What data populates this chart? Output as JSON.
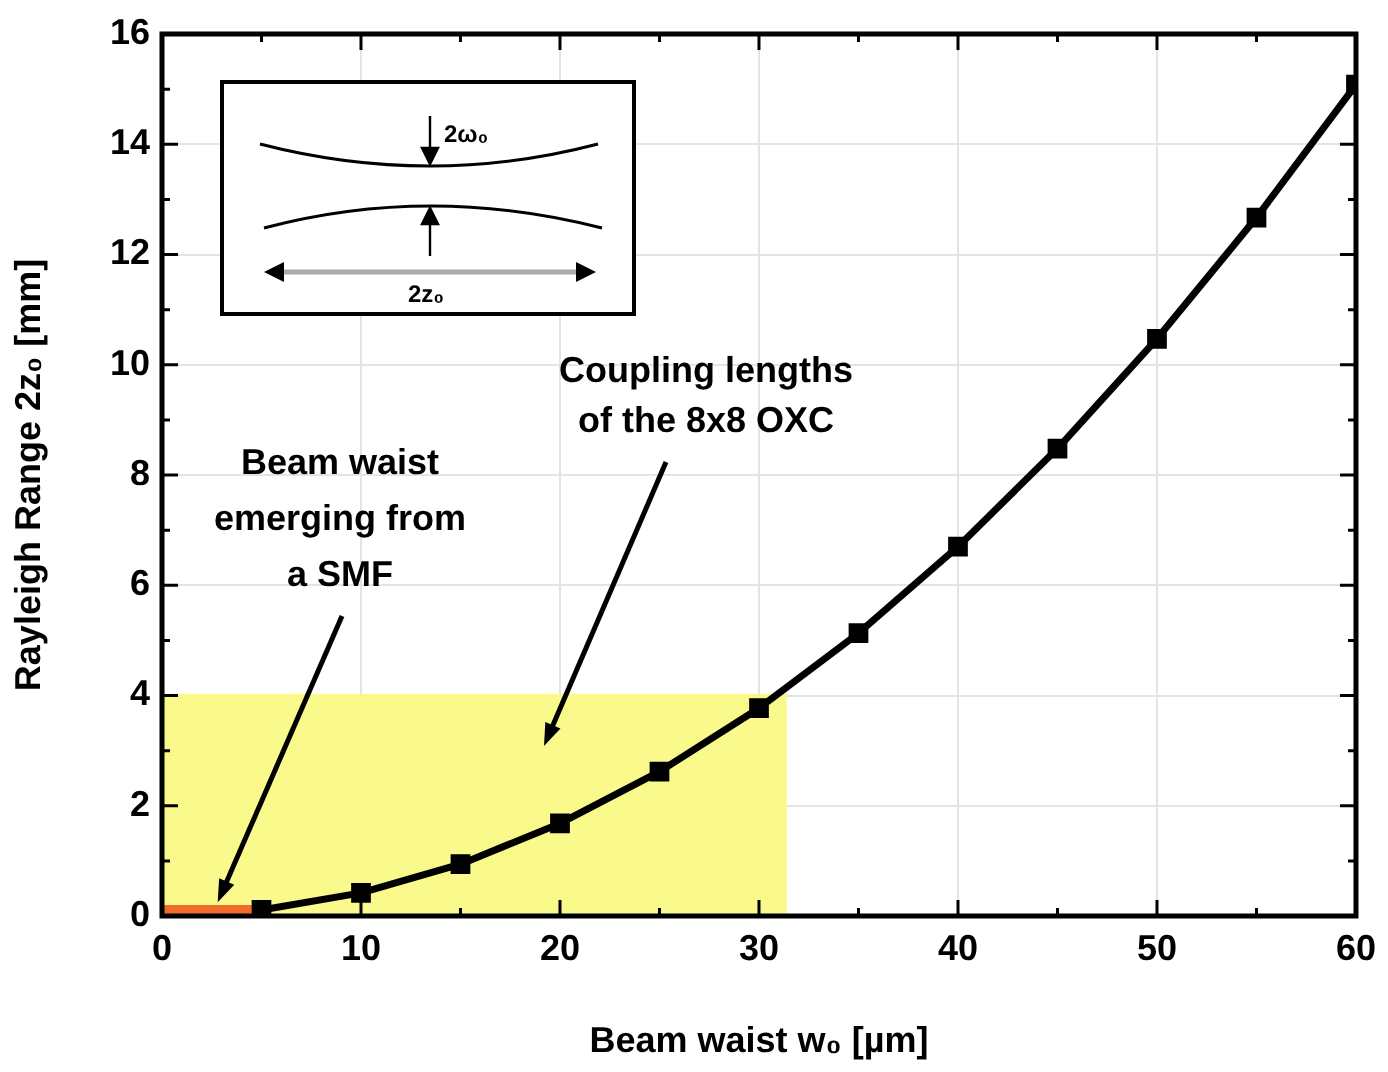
{
  "chart_data": {
    "type": "line",
    "xlabel": "Beam waist w₀ [µm]",
    "ylabel": "Rayleigh Range 2z₀ [mm]",
    "xlim": [
      0,
      60
    ],
    "ylim": [
      0,
      16
    ],
    "xticks": [
      0,
      {
        "value": 5,
        "label": null
      },
      10,
      {
        "value": 15,
        "label": null
      },
      20,
      {
        "value": 25,
        "label": null
      },
      30,
      {
        "value": 35,
        "label": null
      },
      40,
      {
        "value": 45,
        "label": null
      },
      50,
      {
        "value": 55,
        "label": null
      },
      60
    ],
    "yticks": [
      0,
      {
        "value": 1,
        "label": null
      },
      2,
      {
        "value": 3,
        "label": null
      },
      4,
      {
        "value": 5,
        "label": null
      },
      6,
      {
        "value": 7,
        "label": null
      },
      8,
      {
        "value": 9,
        "label": null
      },
      10,
      {
        "value": 11,
        "label": null
      },
      12,
      {
        "value": 13,
        "label": null
      },
      14,
      {
        "value": 15,
        "label": null
      },
      16
    ],
    "grid": true,
    "legend": false,
    "line_style": "solid",
    "series": [
      {
        "color": "#000000",
        "marker": "square",
        "x": [
          5,
          10,
          15,
          20,
          25,
          30,
          35,
          40,
          45,
          50,
          55,
          60
        ],
        "values": [
          0.11,
          0.42,
          0.94,
          1.68,
          2.62,
          3.77,
          5.13,
          6.7,
          8.48,
          10.47,
          12.67,
          15.08
        ]
      },
      {
        "type": "area",
        "color": "#fafa8c",
        "x": [
          0,
          31.4
        ],
        "values": [
          4.03,
          4.03
        ]
      },
      {
        "type": "area",
        "color": "#f26b2a",
        "x": [
          0,
          4.6
        ],
        "values": [
          0.2,
          0.2
        ]
      }
    ],
    "annotations": [
      "Coupling lengths\nof the 8x8 OXC",
      {
        "text": "Beam waist\nemerging from\na SMF",
        "x": 2.8,
        "y": 0.25
      },
      "2ω₀",
      "2z₀"
    ]
  }
}
